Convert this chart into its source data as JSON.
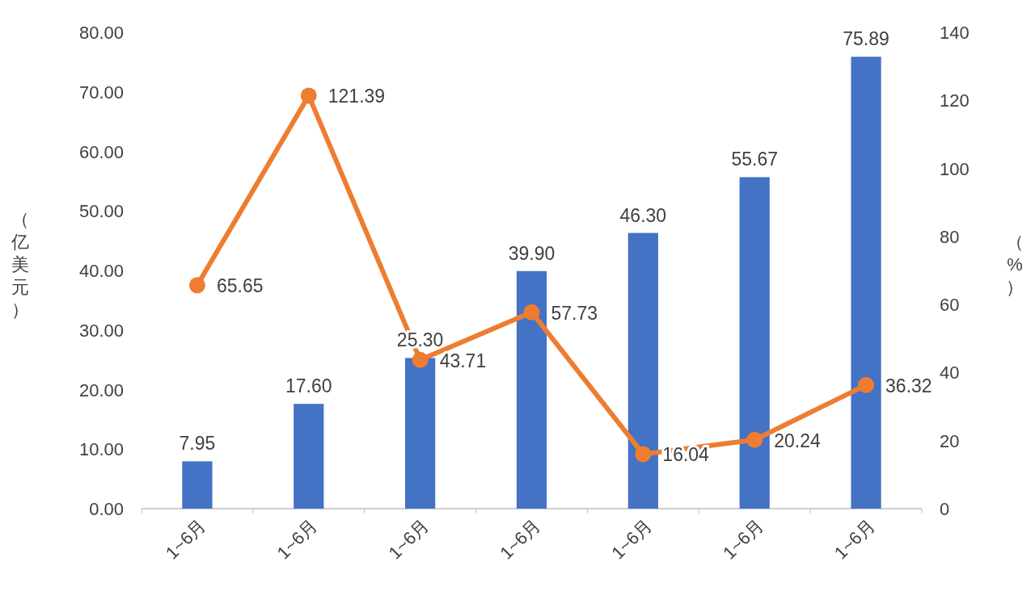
{
  "chart_data": {
    "type": "bar",
    "ylabel": "（亿美元）",
    "y2label": "（%）",
    "categories": [
      "1~6月",
      "1~6月",
      "1~6月",
      "1~6月",
      "1~6月",
      "1~6月",
      "1~6月"
    ],
    "series": [
      {
        "color": "#4472c4",
        "values": [
          7.95,
          17.6,
          25.3,
          39.9,
          46.3,
          55.67,
          75.89
        ],
        "value_labels": [
          "7.95",
          "17.60",
          "25.30",
          "39.90",
          "46.30",
          "55.67",
          "75.89"
        ]
      },
      {
        "type": "line",
        "axis": "y2",
        "color": "#ed7d31",
        "marker": "circle",
        "values": [
          65.65,
          121.39,
          43.71,
          57.73,
          16.04,
          20.24,
          36.32
        ]
      }
    ],
    "data_labels": true,
    "ylim": [
      0,
      80
    ],
    "yticks": [
      {
        "value": 0,
        "label": "0.00"
      },
      {
        "value": 10,
        "label": "10.00"
      },
      {
        "value": 20,
        "label": "20.00"
      },
      {
        "value": 30,
        "label": "30.00"
      },
      {
        "value": 40,
        "label": "40.00"
      },
      {
        "value": 50,
        "label": "50.00"
      },
      {
        "value": 60,
        "label": "60.00"
      },
      {
        "value": 70,
        "label": "70.00"
      },
      {
        "value": 80,
        "label": "80.00"
      }
    ],
    "y2lim": [
      0,
      140
    ],
    "y2ticks": [
      0,
      20,
      40,
      60,
      80,
      100,
      120,
      140
    ]
  }
}
